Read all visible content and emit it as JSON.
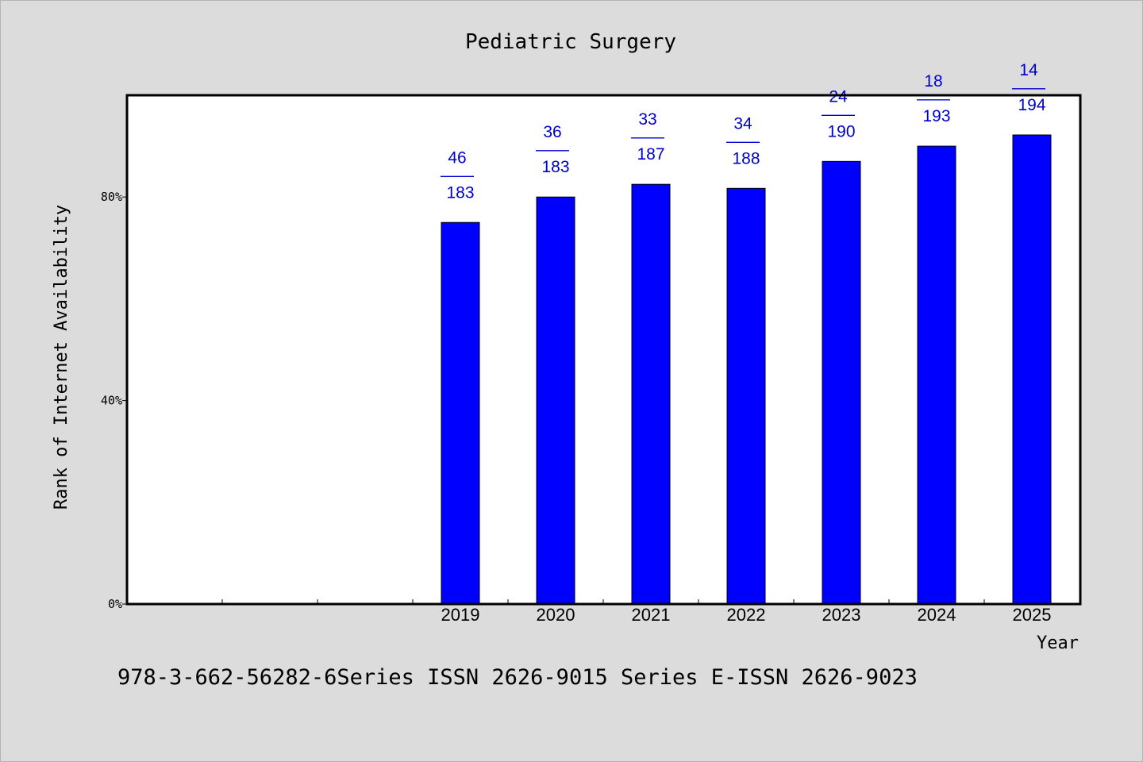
{
  "chart_data": {
    "type": "bar",
    "title": "Pediatric Surgery",
    "xlabel": "Year",
    "ylabel": "Rank of Internet Availability",
    "categories": [
      "2019",
      "2020",
      "2021",
      "2022",
      "2023",
      "2024",
      "2025"
    ],
    "values": [
      75,
      80,
      82.5,
      81.7,
      87,
      90,
      92.2
    ],
    "value_unit": "%",
    "ylim": [
      0,
      100
    ],
    "yticks": [
      0,
      40,
      80
    ],
    "ytick_labels": [
      "0%",
      "40%",
      "80%"
    ],
    "grid": false,
    "legend": "none",
    "annotations": [
      {
        "category": "2019",
        "rank": "46",
        "sep": "——",
        "total": "183"
      },
      {
        "category": "2020",
        "rank": "36",
        "sep": "——",
        "total": "183"
      },
      {
        "category": "2021",
        "rank": "33",
        "sep": "——",
        "total": "187"
      },
      {
        "category": "2022",
        "rank": "34",
        "sep": "——",
        "total": "188"
      },
      {
        "category": "2023",
        "rank": "24",
        "sep": "——",
        "total": "190"
      },
      {
        "category": "2024",
        "rank": "18",
        "sep": "——",
        "total": "193"
      },
      {
        "category": "2025",
        "rank": "14",
        "sep": "——",
        "total": "194"
      }
    ],
    "colors": {
      "bar": "#0000ff",
      "annotation": "#0000cc",
      "plot_bg": "#ffffff",
      "page_bg": "#dcdcdc"
    }
  },
  "footer": {
    "text": "978-3-662-56282-6Series ISSN 2626-9015 Series E-ISSN 2626-9023"
  }
}
